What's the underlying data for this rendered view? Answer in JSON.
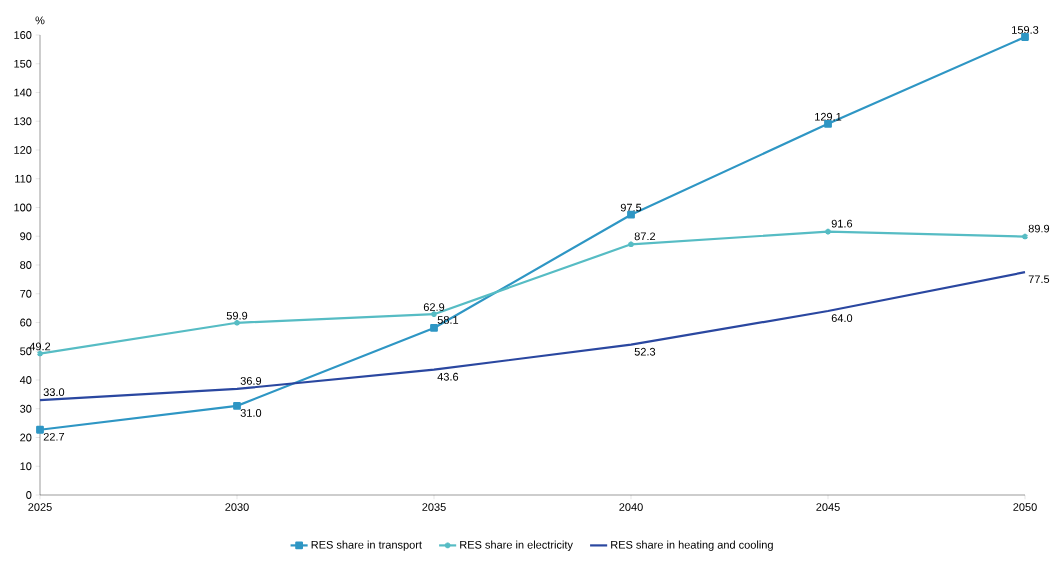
{
  "chart_data": {
    "type": "line",
    "ylabel": "%",
    "x": [
      2025,
      2030,
      2035,
      2040,
      2045,
      2050
    ],
    "series": [
      {
        "name": "RES share in transport",
        "color": "#2e96c4",
        "marker": "square",
        "values": [
          22.7,
          31.0,
          58.1,
          97.5,
          129.1,
          159.3
        ],
        "value_labels": [
          "22.7",
          "31.0",
          "58.1",
          "97.5",
          "129.1",
          "159.3"
        ]
      },
      {
        "name": "RES share in electricity",
        "color": "#56bcc4",
        "marker": "cross",
        "values": [
          49.2,
          59.9,
          62.9,
          87.2,
          91.6,
          89.9
        ],
        "value_labels": [
          "49.2",
          "59.9",
          "62.9",
          "87.2",
          "91.6",
          "89.9"
        ]
      },
      {
        "name": "RES share in heating and cooling",
        "color": "#2a47a0",
        "marker": "none",
        "values": [
          33.0,
          36.9,
          43.6,
          52.3,
          64.0,
          77.5
        ],
        "value_labels": [
          "33.0",
          "36.9",
          "43.6",
          "52.3",
          "64.0",
          "77.5"
        ]
      }
    ],
    "xlim": [
      2025,
      2050
    ],
    "xticks": [
      2025,
      2030,
      2035,
      2040,
      2045,
      2050
    ],
    "ylim": [
      0,
      160
    ],
    "yticks": [
      0,
      10,
      20,
      30,
      40,
      50,
      60,
      70,
      80,
      90,
      100,
      110,
      120,
      130,
      140,
      150,
      160
    ],
    "grid": false,
    "legend": "bottom",
    "line_style": "solid"
  }
}
